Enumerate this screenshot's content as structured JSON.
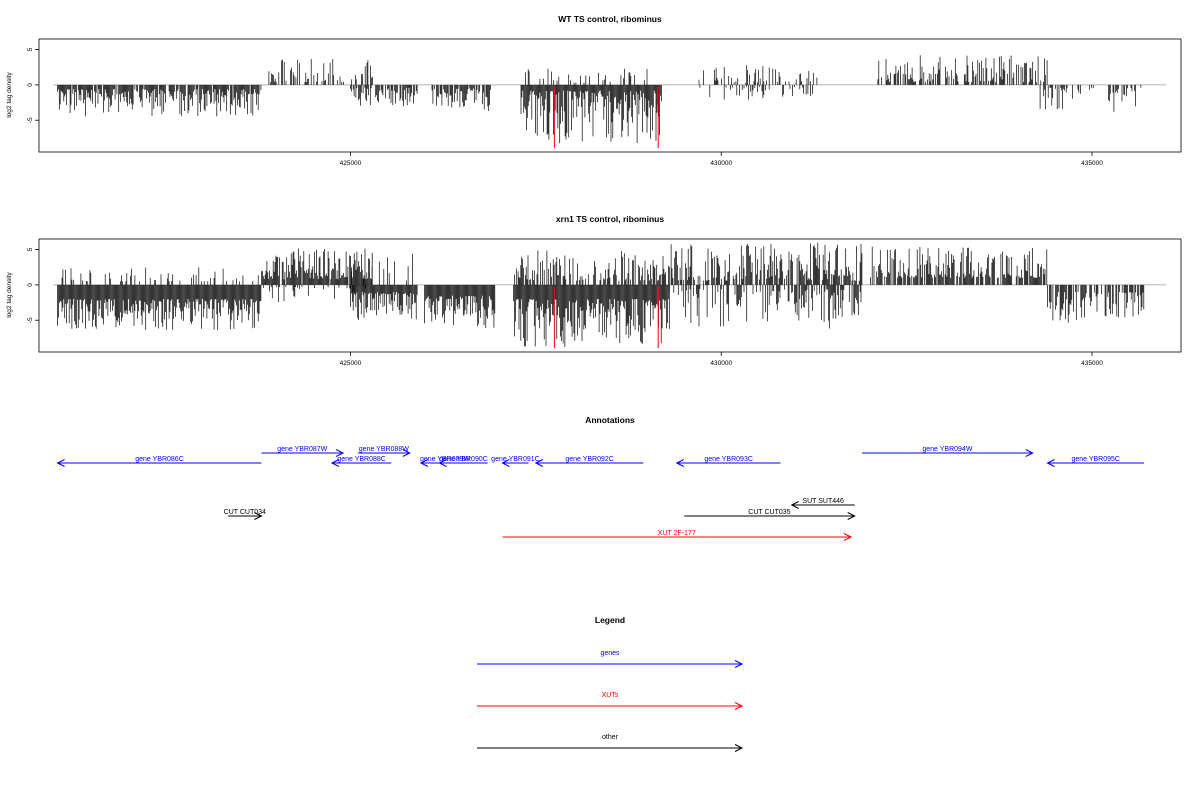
{
  "chart_data": [
    {
      "type": "bar",
      "title": "WT TS control, ribominus",
      "ylabel": "log2 tag density",
      "xlim": [
        420800,
        436200
      ],
      "ylim": [
        -9.5,
        6.5
      ],
      "x_ticks": [
        425000,
        430000,
        435000
      ],
      "y_ticks": [
        -5,
        0,
        5
      ],
      "baseline_range": [
        421000,
        436000
      ],
      "reference_lines": [
        427750,
        429150
      ],
      "segments": [
        {
          "start": 421050,
          "end": 423800,
          "sign": -1,
          "min": 0.6,
          "max": 4.5,
          "density": 0.9
        },
        {
          "start": 423900,
          "end": 425300,
          "sign": 1,
          "min": 0.4,
          "max": 3.8,
          "density": 0.5
        },
        {
          "start": 425000,
          "end": 425900,
          "sign": -1,
          "min": 0.4,
          "max": 3.0,
          "density": 0.7
        },
        {
          "start": 426100,
          "end": 426900,
          "sign": -1,
          "min": 0.5,
          "max": 3.8,
          "density": 0.75
        },
        {
          "start": 427300,
          "end": 429200,
          "sign": -1,
          "min": 0.8,
          "max": 8.3,
          "density": 1.0
        },
        {
          "start": 427300,
          "end": 429200,
          "sign": 1,
          "min": 0.3,
          "max": 2.3,
          "density": 0.2
        },
        {
          "start": 429700,
          "end": 431300,
          "sign": 1,
          "min": 0.3,
          "max": 3.0,
          "density": 0.3
        },
        {
          "start": 429700,
          "end": 431300,
          "sign": -1,
          "min": 0.3,
          "max": 2.2,
          "density": 0.3
        },
        {
          "start": 432100,
          "end": 434400,
          "sign": 1,
          "min": 0.4,
          "max": 4.2,
          "density": 0.6
        },
        {
          "start": 434300,
          "end": 435700,
          "sign": -1,
          "min": 0.4,
          "max": 3.8,
          "density": 0.45
        }
      ]
    },
    {
      "type": "bar",
      "title": "xrn1 TS control, ribominus",
      "ylabel": "log2 tag density",
      "xlim": [
        420800,
        436200
      ],
      "ylim": [
        -9.5,
        6.5
      ],
      "x_ticks": [
        425000,
        430000,
        435000
      ],
      "y_ticks": [
        -5,
        0,
        5
      ],
      "baseline_range": [
        421000,
        436000
      ],
      "reference_lines": [
        427750,
        429150
      ],
      "segments": [
        {
          "start": 421050,
          "end": 423800,
          "sign": -1,
          "min": 2.0,
          "max": 6.5,
          "density": 1.0
        },
        {
          "start": 421050,
          "end": 423800,
          "sign": 1,
          "min": 0.5,
          "max": 2.6,
          "density": 0.2
        },
        {
          "start": 423800,
          "end": 425300,
          "sign": 1,
          "min": 0.8,
          "max": 5.2,
          "density": 0.9
        },
        {
          "start": 423800,
          "end": 425300,
          "sign": -1,
          "min": 0.3,
          "max": 2.8,
          "density": 0.2
        },
        {
          "start": 425000,
          "end": 425900,
          "sign": -1,
          "min": 1.0,
          "max": 5.0,
          "density": 1.0
        },
        {
          "start": 425000,
          "end": 425900,
          "sign": 1,
          "min": 0.4,
          "max": 4.5,
          "density": 0.15
        },
        {
          "start": 426000,
          "end": 426950,
          "sign": -1,
          "min": 1.5,
          "max": 6.5,
          "density": 1.0
        },
        {
          "start": 427200,
          "end": 429300,
          "sign": -1,
          "min": 2.0,
          "max": 8.8,
          "density": 1.0
        },
        {
          "start": 427200,
          "end": 429300,
          "sign": 1,
          "min": 0.6,
          "max": 5.0,
          "density": 0.6
        },
        {
          "start": 429300,
          "end": 431900,
          "sign": 1,
          "min": 0.6,
          "max": 6.0,
          "density": 0.7
        },
        {
          "start": 429300,
          "end": 431900,
          "sign": -1,
          "min": 0.6,
          "max": 6.5,
          "density": 0.55
        },
        {
          "start": 432000,
          "end": 434400,
          "sign": 1,
          "min": 1.0,
          "max": 5.5,
          "density": 0.75
        },
        {
          "start": 434400,
          "end": 435700,
          "sign": -1,
          "min": 1.0,
          "max": 5.5,
          "density": 0.7
        }
      ]
    }
  ],
  "annotations": {
    "title": "Annotations",
    "colors": {
      "genes": "#0000ff",
      "XUTs": "#ff0000",
      "other": "#000000"
    },
    "features": [
      {
        "label": "gene YBR086C",
        "start": 421050,
        "end": 423800,
        "strand": "-",
        "row": 1,
        "type": "genes"
      },
      {
        "label": "gene YBR087W",
        "start": 423800,
        "end": 424900,
        "strand": "+",
        "row": 0,
        "type": "genes"
      },
      {
        "label": "gene YBR088W",
        "start": 425100,
        "end": 425800,
        "strand": "+",
        "row": 0,
        "type": "genes"
      },
      {
        "label": "gene YBR088C",
        "start": 424750,
        "end": 425550,
        "strand": "-",
        "row": 1,
        "type": "genes"
      },
      {
        "label": "gene YBR089W",
        "start": 425950,
        "end": 426600,
        "strand": "-",
        "row": 1,
        "type": "genes"
      },
      {
        "label": "gene YBR090C",
        "start": 426200,
        "end": 426850,
        "strand": "-",
        "row": 1,
        "type": "genes"
      },
      {
        "label": "gene YBR091C",
        "start": 427050,
        "end": 427400,
        "strand": "-",
        "row": 1,
        "type": "genes"
      },
      {
        "label": "gene YBR092C",
        "start": 427500,
        "end": 428950,
        "strand": "-",
        "row": 1,
        "type": "genes"
      },
      {
        "label": "gene YBR093C",
        "start": 429400,
        "end": 430800,
        "strand": "-",
        "row": 1,
        "type": "genes"
      },
      {
        "label": "gene YBR094W",
        "start": 431900,
        "end": 434200,
        "strand": "+",
        "row": 0,
        "type": "genes"
      },
      {
        "label": "gene YBR095C",
        "start": 434400,
        "end": 435700,
        "strand": "-",
        "row": 1,
        "type": "genes"
      },
      {
        "label": "SUT SUT446",
        "start": 430950,
        "end": 431800,
        "strand": "-",
        "row": 3,
        "type": "other"
      },
      {
        "label": "CUT CUT034",
        "start": 423350,
        "end": 423800,
        "strand": "+",
        "row": 4,
        "type": "other"
      },
      {
        "label": "CUT CUT035",
        "start": 429500,
        "end": 431800,
        "strand": "+",
        "row": 4,
        "type": "other"
      },
      {
        "label": "XUT 2F-177",
        "start": 427050,
        "end": 431750,
        "strand": "+",
        "row": 6,
        "type": "XUTs"
      }
    ]
  },
  "legend": {
    "title": "Legend",
    "items": [
      {
        "label": "genes",
        "color": "#0000ff"
      },
      {
        "label": "XUTs",
        "color": "#ff0000"
      },
      {
        "label": "other",
        "color": "#000000"
      }
    ]
  }
}
